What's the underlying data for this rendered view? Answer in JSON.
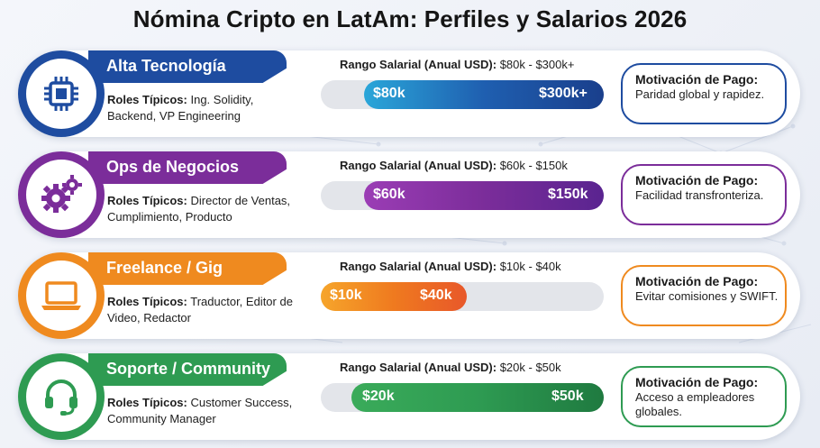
{
  "title": "Nómina Cripto en LatAm: Perfiles y Salarios 2026",
  "range_prefix": "Rango Salarial (Anual USD):",
  "roles_prefix": "Roles Típicos:",
  "motivation_title": "Motivación de Pago:",
  "rows": [
    {
      "name": "Alta Tecnología",
      "icon": "chip-icon",
      "color": "#1e4ca0",
      "roles": "Ing. Solidity, Backend, VP Engineering",
      "range_text": "$80k - $300k+",
      "min_label": "$80k",
      "max_label": "$300k+",
      "motivation": "Paridad global y rapidez."
    },
    {
      "name": "Ops de Negocios",
      "icon": "gears-icon",
      "color": "#7b2d9a",
      "roles": "Director de Ventas, Cumplimiento, Producto",
      "range_text": "$60k - $150k",
      "min_label": "$60k",
      "max_label": "$150k",
      "motivation": "Facilidad transfronteriza."
    },
    {
      "name": "Freelance / Gig",
      "icon": "laptop-icon",
      "color": "#ef8a1f",
      "roles": "Traductor, Editor de Video, Redactor",
      "range_text": "$10k - $40k",
      "min_label": "$10k",
      "max_label": "$40k",
      "motivation": "Evitar comisiones y SWIFT."
    },
    {
      "name": "Soporte / Community",
      "icon": "headset-icon",
      "color": "#2e9b52",
      "roles": "Customer Success, Community Manager",
      "range_text": "$20k - $50k",
      "min_label": "$20k",
      "max_label": "$50k",
      "motivation": "Acceso a empleadores globales."
    }
  ]
}
